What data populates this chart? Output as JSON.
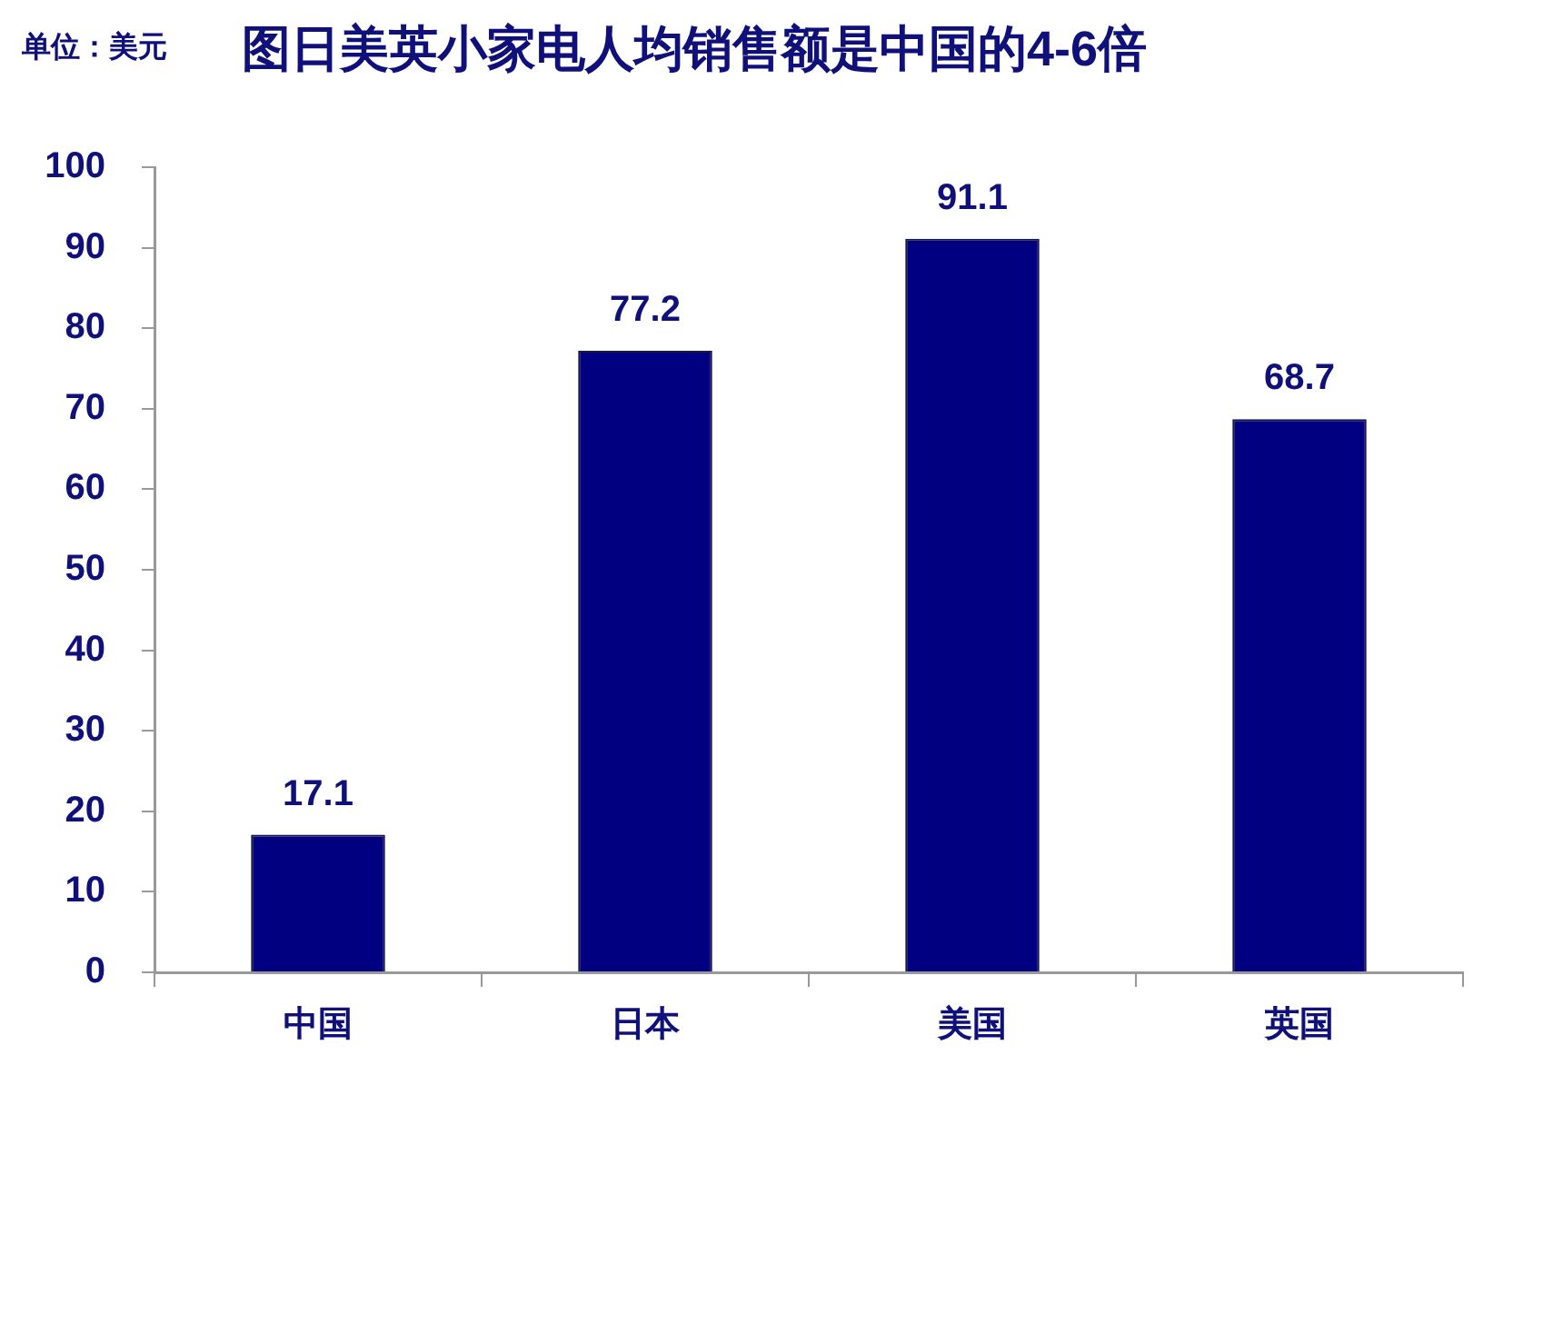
{
  "chart_data": {
    "type": "bar",
    "title": "图日美英小家电人均销售额是中国的4-6倍",
    "ylabel": "单位：美元",
    "categories": [
      "中国",
      "日本",
      "美国",
      "英国"
    ],
    "values": [
      17.1,
      77.2,
      91.1,
      68.7
    ],
    "color": "#000080",
    "ylim": [
      0,
      100
    ],
    "yticks": [
      0,
      10,
      20,
      30,
      40,
      50,
      60,
      70,
      80,
      90,
      100
    ],
    "data_labels": true
  }
}
